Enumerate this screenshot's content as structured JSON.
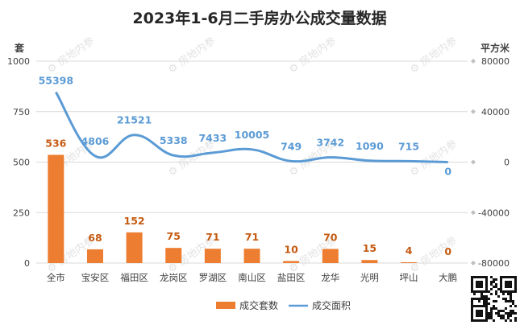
{
  "chart_data": {
    "type": "bar+line",
    "title": "2023年1-6月二手房办公成交量数据",
    "left_axis_unit": "套",
    "right_axis_unit": "平方米",
    "left_ylim": [
      0,
      1000
    ],
    "left_ticks": [
      0,
      250,
      500,
      750,
      1000
    ],
    "right_ylim": [
      -80000,
      80000
    ],
    "right_ticks": [
      -80000,
      -40000,
      0,
      40000,
      80000
    ],
    "categories": [
      "全市",
      "宝安区",
      "福田区",
      "龙岗区",
      "罗湖区",
      "南山区",
      "盐田区",
      "龙华",
      "光明",
      "坪山",
      "大鹏"
    ],
    "series": [
      {
        "name": "成交套数",
        "type": "bar",
        "axis": "left",
        "color": "#ed7d31",
        "label_color": "#c55a11",
        "values": [
          536,
          68,
          152,
          75,
          71,
          71,
          10,
          70,
          15,
          4,
          0
        ]
      },
      {
        "name": "成交面积",
        "type": "line",
        "axis": "right",
        "color": "#5b9bd5",
        "label_color": "#5b9bd5",
        "values": [
          55398,
          4806,
          21521,
          5338,
          7433,
          10005,
          749,
          3742,
          1090,
          715,
          0
        ]
      }
    ],
    "grid": true,
    "legend_position": "bottom",
    "watermark": "房地内参"
  }
}
